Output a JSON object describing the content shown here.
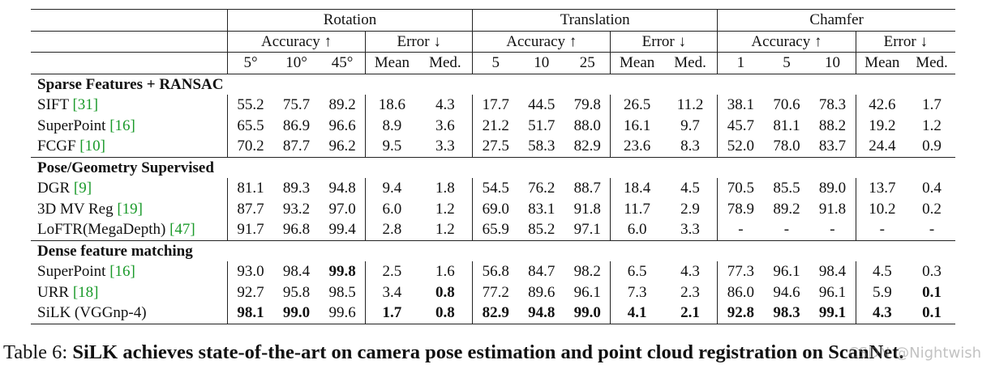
{
  "header": {
    "groups": [
      "Rotation",
      "Translation",
      "Chamfer"
    ],
    "subgroups": [
      "Accuracy ↑",
      "Error ↓"
    ],
    "columns": [
      [
        "5°",
        "10°",
        "45°",
        "Mean",
        "Med."
      ],
      [
        "5",
        "10",
        "25",
        "Mean",
        "Med."
      ],
      [
        "1",
        "5",
        "10",
        "Mean",
        "Med."
      ]
    ]
  },
  "sections": [
    {
      "title": "Sparse Features + RANSAC",
      "rows": [
        {
          "method": "SIFT",
          "ref": "[31]",
          "values": [
            "55.2",
            "75.7",
            "89.2",
            "18.6",
            "4.3",
            "17.7",
            "44.5",
            "79.8",
            "26.5",
            "11.2",
            "38.1",
            "70.6",
            "78.3",
            "42.6",
            "1.7"
          ],
          "bold": []
        },
        {
          "method": "SuperPoint",
          "ref": "[16]",
          "values": [
            "65.5",
            "86.9",
            "96.6",
            "8.9",
            "3.6",
            "21.2",
            "51.7",
            "88.0",
            "16.1",
            "9.7",
            "45.7",
            "81.1",
            "88.2",
            "19.2",
            "1.2"
          ],
          "bold": []
        },
        {
          "method": "FCGF",
          "ref": "[10]",
          "values": [
            "70.2",
            "87.7",
            "96.2",
            "9.5",
            "3.3",
            "27.5",
            "58.3",
            "82.9",
            "23.6",
            "8.3",
            "52.0",
            "78.0",
            "83.7",
            "24.4",
            "0.9"
          ],
          "bold": []
        }
      ]
    },
    {
      "title": "Pose/Geometry Supervised",
      "rows": [
        {
          "method": "DGR",
          "ref": "[9]",
          "values": [
            "81.1",
            "89.3",
            "94.8",
            "9.4",
            "1.8",
            "54.5",
            "76.2",
            "88.7",
            "18.4",
            "4.5",
            "70.5",
            "85.5",
            "89.0",
            "13.7",
            "0.4"
          ],
          "bold": []
        },
        {
          "method": "3D MV Reg",
          "ref": "[19]",
          "values": [
            "87.7",
            "93.2",
            "97.0",
            "6.0",
            "1.2",
            "69.0",
            "83.1",
            "91.8",
            "11.7",
            "2.9",
            "78.9",
            "89.2",
            "91.8",
            "10.2",
            "0.2"
          ],
          "bold": []
        },
        {
          "method": "LoFTR(MegaDepth)",
          "ref": "[47]",
          "values": [
            "91.7",
            "96.8",
            "99.4",
            "2.8",
            "1.2",
            "65.9",
            "85.2",
            "97.1",
            "6.0",
            "3.3",
            "-",
            "-",
            "-",
            "-",
            "-"
          ],
          "bold": []
        }
      ]
    },
    {
      "title": "Dense feature matching",
      "rows": [
        {
          "method": "SuperPoint",
          "ref": "[16]",
          "values": [
            "93.0",
            "98.4",
            "99.8",
            "2.5",
            "1.6",
            "56.8",
            "84.7",
            "98.2",
            "6.5",
            "4.3",
            "77.3",
            "96.1",
            "98.4",
            "4.5",
            "0.3"
          ],
          "bold": [
            2
          ]
        },
        {
          "method": "URR",
          "ref": "[18]",
          "values": [
            "92.7",
            "95.8",
            "98.5",
            "3.4",
            "0.8",
            "77.2",
            "89.6",
            "96.1",
            "7.3",
            "2.3",
            "86.0",
            "94.6",
            "96.1",
            "5.9",
            "0.1"
          ],
          "bold": [
            4,
            14
          ]
        },
        {
          "method": "SiLK (VGGnp-4)",
          "ref": "",
          "values": [
            "98.1",
            "99.0",
            "99.6",
            "1.7",
            "0.8",
            "82.9",
            "94.8",
            "99.0",
            "4.1",
            "2.1",
            "92.8",
            "98.3",
            "99.1",
            "4.3",
            "0.1"
          ],
          "bold": [
            0,
            1,
            3,
            4,
            5,
            6,
            7,
            8,
            9,
            10,
            11,
            12,
            13,
            14
          ]
        }
      ]
    }
  ],
  "caption": {
    "prefix": "Table 6: ",
    "bold_text": "SiLK achieves state-of-the-art on camera pose estimation and point cloud registration on ScanNet."
  },
  "watermark": "CSDN @Nightwish"
}
